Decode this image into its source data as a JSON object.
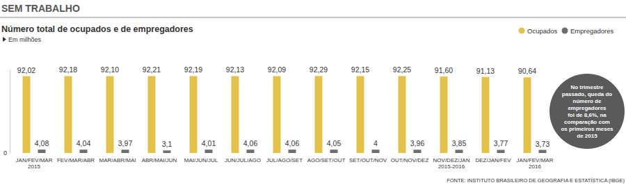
{
  "chart_data": {
    "type": "bar",
    "header": "SEM TRABALHO",
    "title": "Número total de ocupados e de empregadores",
    "subtitle": "Em milhões",
    "source": "FONTE: INSTITUTO BRASILEIRO DE GEOGRAFIA E ESTATÍSTICA (IBGE)",
    "annotation": "No trimestre\npassado, queda do\nnúmero de\nempregadores\nfoi de 8,6%, na\ncomparação com\nos primeiros meses\nde 2015",
    "categories": [
      "JAN/FEV/MAR\n2015",
      "FEV/MAR/ABR",
      "MAR/ABR/MAI",
      "ABR/MAI/JUN",
      "MAI/JUN/JUL",
      "JUN/JUL/AGO",
      "JUL/AGO/SET",
      "AGO/SET/OUT",
      "SET/OUT/NOV",
      "OUT/NOV/DEZ",
      "NOV/DEZ/JAN\n2015-2016",
      "DEZ/JAN/FEV",
      "JAN/FEV/MAR\n2016"
    ],
    "series": [
      {
        "name": "Ocupados",
        "color": "#e3c24c",
        "values": [
          92.02,
          92.18,
          92.1,
          92.21,
          92.19,
          92.13,
          92.09,
          92.29,
          92.15,
          92.25,
          91.6,
          91.13,
          90.64
        ],
        "value_labels": [
          "92,02",
          "92,18",
          "92,10",
          "92,21",
          "92,19",
          "92,13",
          "92,09",
          "92,29",
          "92,15",
          "92,25",
          "91,60",
          "91,13",
          "90,64"
        ]
      },
      {
        "name": "Empregadores",
        "color": "#6e6e6e",
        "values": [
          4.08,
          4.04,
          3.97,
          3.1,
          4.01,
          4.06,
          4.06,
          4.05,
          4,
          3.96,
          3.85,
          3.77,
          3.73
        ],
        "value_labels": [
          "4,08",
          "4,04",
          "3,97",
          "3,1",
          "4,01",
          "4,06",
          "4,06",
          "4,05",
          "4",
          "3,96",
          "3,85",
          "3,77",
          "3,73"
        ]
      }
    ],
    "ylim": [
      0,
      100
    ],
    "yticks": [
      0
    ],
    "legend": "top-right",
    "data_labels": true
  }
}
